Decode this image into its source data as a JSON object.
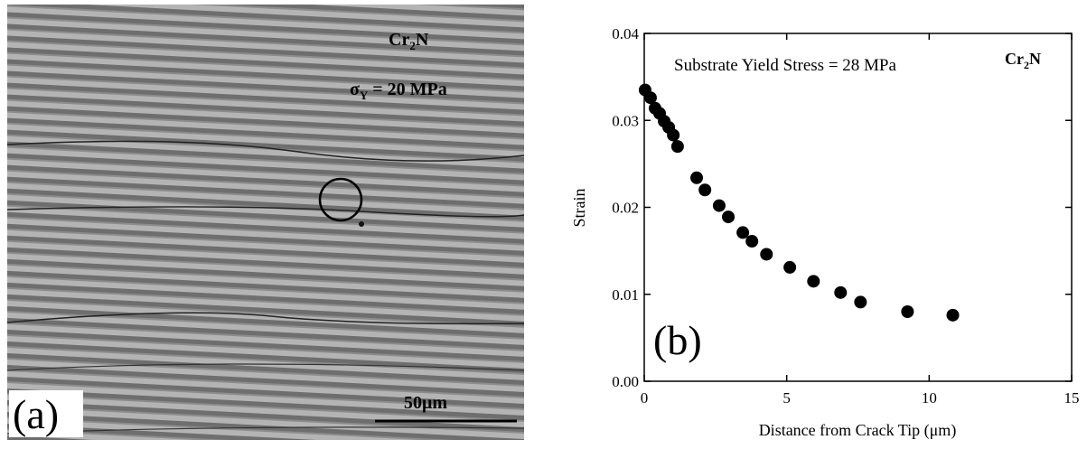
{
  "panel_a": {
    "formula": [
      "Cr",
      "2",
      "N"
    ],
    "stress": {
      "symbol": "σ",
      "sub": "Y",
      "text": " = 20 MPa"
    },
    "scale_bar": "50μm",
    "label": "(a)"
  },
  "chart_data": {
    "type": "scatter",
    "annotation": "Substrate Yield Stress = 28 MPa",
    "formula": [
      "Cr",
      "2",
      "N"
    ],
    "panel_label": "(b)",
    "xlabel": "Distance from Crack Tip (μm)",
    "ylabel": "Strain",
    "color": "#000000",
    "x": [
      0.03,
      0.22,
      0.38,
      0.54,
      0.7,
      0.86,
      1.02,
      1.17,
      1.84,
      2.13,
      2.63,
      2.95,
      3.46,
      3.78,
      4.29,
      5.11,
      5.94,
      6.89,
      7.59,
      9.24,
      10.83
    ],
    "values": [
      0.0335,
      0.0326,
      0.0314,
      0.0308,
      0.0299,
      0.0292,
      0.0283,
      0.027,
      0.0234,
      0.022,
      0.0202,
      0.0189,
      0.0171,
      0.0161,
      0.0146,
      0.0131,
      0.0115,
      0.0102,
      0.0091,
      0.008,
      0.0076
    ],
    "xlim": [
      0,
      15
    ],
    "xticks": [
      0,
      5,
      10,
      15
    ],
    "ylim": [
      0,
      0.04
    ],
    "yticks": [
      {
        "value": 0,
        "label": "0.00"
      },
      0.01,
      0.02,
      0.03,
      0.04
    ]
  }
}
